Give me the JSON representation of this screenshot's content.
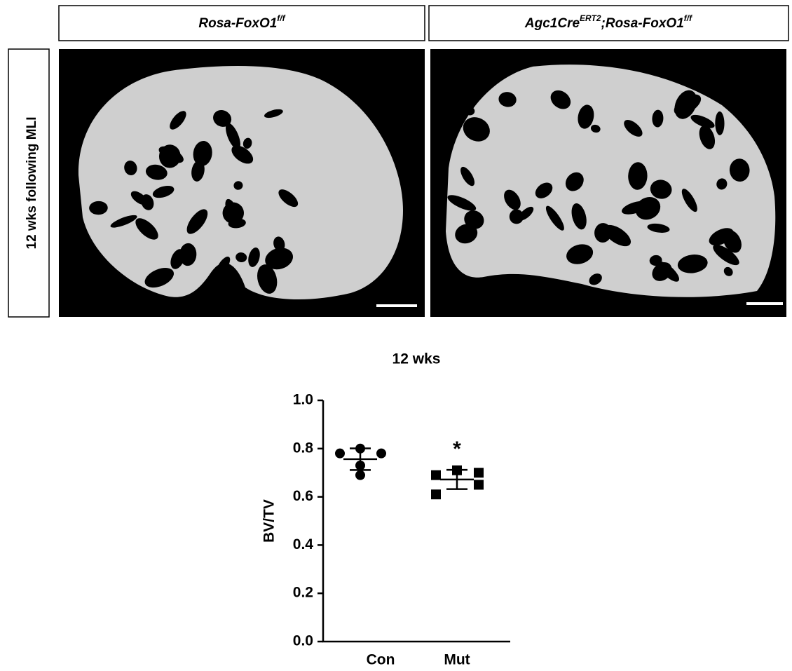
{
  "panels": {
    "headers": [
      {
        "parts": [
          {
            "text": "Rosa-FoxO1"
          },
          {
            "text": "f/f",
            "sup": true
          }
        ]
      },
      {
        "parts": [
          {
            "text": "Agc1Cre"
          },
          {
            "text": "ERT2",
            "sup": true
          },
          {
            "text": ";Rosa-FoxO1"
          },
          {
            "text": "f/f",
            "sup": true
          }
        ]
      }
    ],
    "row_label": "12 wks following MLI"
  },
  "chart_data": {
    "type": "dot",
    "title": "12 wks",
    "y_label": "BV/TV",
    "categories": [
      "Con",
      "Mut"
    ],
    "groups": [
      {
        "marker": "circle",
        "color": "#000000",
        "values": [
          0.78,
          0.8,
          0.78,
          0.73,
          0.69
        ],
        "mean": 0.756,
        "sd": 0.045
      },
      {
        "marker": "square",
        "color": "#000000",
        "values": [
          0.69,
          0.71,
          0.7,
          0.65,
          0.61
        ],
        "mean": 0.672,
        "sd": 0.04
      }
    ],
    "annotations": [
      {
        "text": "*",
        "category": 1
      }
    ],
    "ylim": [
      0,
      1
    ],
    "yticks": [
      {
        "value": 0,
        "label": "0.0"
      },
      {
        "value": 0.2,
        "label": "0.2"
      },
      {
        "value": 0.4,
        "label": "0.4"
      },
      {
        "value": 0.6,
        "label": "0.6"
      },
      {
        "value": 0.8,
        "label": "0.8"
      },
      {
        "value": 1,
        "label": "1.0"
      }
    ]
  }
}
